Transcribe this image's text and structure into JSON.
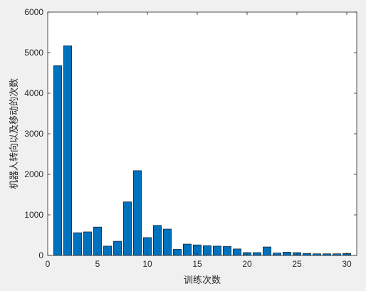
{
  "colors": {
    "figure_bg": "#f0f0f0",
    "axes_bg": "#ffffff",
    "bar_fill": "#0072bd",
    "bar_edge": "#000000",
    "axis_color": "#262626"
  },
  "chart_data": {
    "type": "bar",
    "xlabel": "训练次数",
    "ylabel": "机器人转向以及移动的次数",
    "xlim": [
      0,
      31
    ],
    "ylim": [
      0,
      6000
    ],
    "xticks": [
      0,
      5,
      10,
      15,
      20,
      25,
      30
    ],
    "yticks": [
      0,
      1000,
      2000,
      3000,
      4000,
      5000,
      6000
    ],
    "grid": false,
    "x": [
      1,
      2,
      3,
      4,
      5,
      6,
      7,
      8,
      9,
      10,
      11,
      12,
      13,
      14,
      15,
      16,
      17,
      18,
      19,
      20,
      21,
      22,
      23,
      24,
      25,
      26,
      27,
      28,
      29,
      30
    ],
    "values": [
      4680,
      5170,
      560,
      580,
      700,
      230,
      350,
      1320,
      2090,
      440,
      740,
      650,
      150,
      280,
      260,
      240,
      230,
      220,
      160,
      70,
      70,
      210,
      60,
      80,
      70,
      50,
      40,
      40,
      40,
      50
    ]
  }
}
